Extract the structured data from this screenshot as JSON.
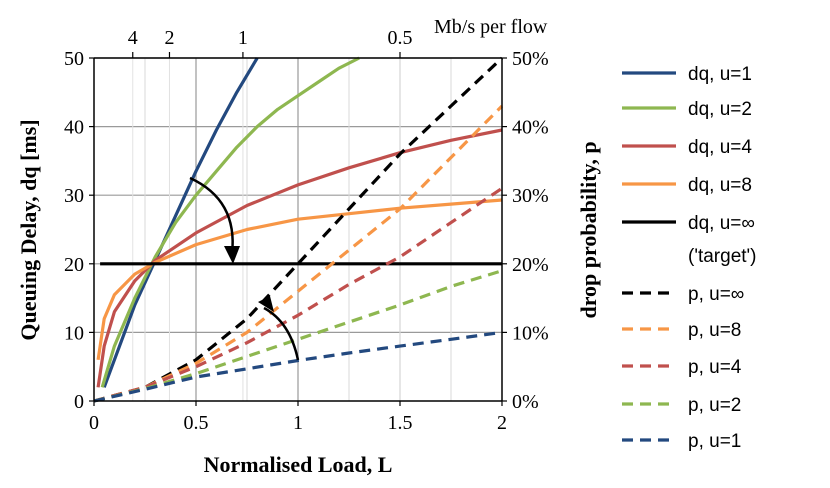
{
  "chart_data": {
    "type": "line",
    "xlabel": "Normalised Load, L",
    "ylabel_left": "Queuing Delay, dq [ms]",
    "ylabel_right": "drop probability, p",
    "top_axis_label": "Mb/s per flow",
    "xlim": [
      0,
      2
    ],
    "ylim_left": [
      0,
      50
    ],
    "ylim_right": [
      0,
      0.5
    ],
    "x_ticks": [
      0,
      0.5,
      1,
      1.5,
      2
    ],
    "x_tick_labels": [
      "0",
      "0.5",
      "1",
      "1.5",
      "2"
    ],
    "y_left_ticks": [
      0,
      10,
      20,
      30,
      40,
      50
    ],
    "y_left_tick_labels": [
      "0",
      "10",
      "20",
      "30",
      "40",
      "50"
    ],
    "y_right_ticks": [
      0,
      0.1,
      0.2,
      0.3,
      0.4,
      0.5
    ],
    "y_right_tick_labels": [
      "0%",
      "10%",
      "20%",
      "30%",
      "40%",
      "50%"
    ],
    "top_ticks": [
      {
        "label": "4",
        "x": 0.19
      },
      {
        "label": "2",
        "x": 0.37
      },
      {
        "label": "1",
        "x": 0.73
      },
      {
        "label": "0.5",
        "x": 1.5
      }
    ],
    "grid": true,
    "legend_position": "right",
    "series": [
      {
        "name": "dq, u=1",
        "axis": "left",
        "dash": "solid",
        "color": "#23497f",
        "x": [
          0.05,
          0.2,
          0.3,
          0.4,
          0.5,
          0.6,
          0.7,
          0.8
        ],
        "y": [
          2,
          14,
          20.5,
          27,
          33.5,
          39.5,
          45,
          50
        ]
      },
      {
        "name": "dq, u=2",
        "axis": "left",
        "dash": "solid",
        "color": "#8eb750",
        "x": [
          0.04,
          0.1,
          0.2,
          0.3,
          0.4,
          0.5,
          0.6,
          0.7,
          0.8,
          0.9,
          1.0,
          1.1,
          1.2,
          1.3
        ],
        "y": [
          2,
          8,
          15,
          21,
          26,
          30,
          33.5,
          37,
          40,
          42.5,
          44.5,
          46.5,
          48.5,
          50
        ]
      },
      {
        "name": "dq, u=4",
        "axis": "left",
        "dash": "solid",
        "color": "#c0504d",
        "x": [
          0.02,
          0.05,
          0.1,
          0.2,
          0.3,
          0.5,
          0.75,
          1.0,
          1.25,
          1.5,
          1.75,
          2.0
        ],
        "y": [
          2,
          8,
          13,
          17.5,
          20.5,
          24.5,
          28.5,
          31.5,
          34,
          36.2,
          38,
          39.5
        ]
      },
      {
        "name": "dq, u=8",
        "axis": "left",
        "dash": "solid",
        "color": "#f79646",
        "x": [
          0.02,
          0.05,
          0.1,
          0.2,
          0.3,
          0.5,
          0.75,
          1.0,
          1.25,
          1.5,
          1.75,
          2.0
        ],
        "y": [
          6,
          12,
          15.5,
          18.5,
          20.2,
          22.8,
          25,
          26.5,
          27.3,
          28.1,
          28.7,
          29.3
        ]
      },
      {
        "name": "dq, u=∞",
        "axis": "left",
        "dash": "solid",
        "color": "#000000",
        "x": [
          0.03,
          2.0
        ],
        "y": [
          20,
          20
        ]
      },
      {
        "name": "('target')",
        "axis": "left",
        "dash": "solid",
        "color": "#000000",
        "x": [],
        "y": []
      },
      {
        "name": "p, u=∞",
        "axis": "right",
        "dash": "dashed",
        "color": "#000000",
        "x": [
          0,
          0.25,
          0.5,
          0.75,
          1.0,
          1.25,
          1.5,
          1.75,
          2.0
        ],
        "y": [
          0,
          0.02,
          0.06,
          0.12,
          0.2,
          0.28,
          0.36,
          0.43,
          0.5
        ]
      },
      {
        "name": "p, u=8",
        "axis": "right",
        "dash": "dashed",
        "color": "#f79646",
        "x": [
          0,
          0.25,
          0.5,
          0.75,
          1.0,
          1.25,
          1.5,
          1.75,
          2.0
        ],
        "y": [
          0,
          0.02,
          0.055,
          0.1,
          0.16,
          0.22,
          0.28,
          0.355,
          0.43
        ]
      },
      {
        "name": "p, u=4",
        "axis": "right",
        "dash": "dashed",
        "color": "#c0504d",
        "x": [
          0,
          0.25,
          0.5,
          0.75,
          1.0,
          1.25,
          1.5,
          1.75,
          2.0
        ],
        "y": [
          0,
          0.02,
          0.05,
          0.085,
          0.125,
          0.17,
          0.21,
          0.26,
          0.31
        ]
      },
      {
        "name": "p, u=2",
        "axis": "right",
        "dash": "dashed",
        "color": "#8eb750",
        "x": [
          0,
          0.25,
          0.5,
          0.75,
          1.0,
          1.25,
          1.5,
          1.75,
          2.0
        ],
        "y": [
          0,
          0.018,
          0.04,
          0.065,
          0.09,
          0.115,
          0.14,
          0.167,
          0.19
        ]
      },
      {
        "name": "p, u=1",
        "axis": "right",
        "dash": "dashed",
        "color": "#23497f",
        "x": [
          0,
          0.25,
          0.5,
          0.75,
          1.0,
          1.25,
          1.5,
          1.75,
          2.0
        ],
        "y": [
          0,
          0.017,
          0.035,
          0.047,
          0.059,
          0.07,
          0.08,
          0.09,
          0.1
        ]
      }
    ]
  }
}
